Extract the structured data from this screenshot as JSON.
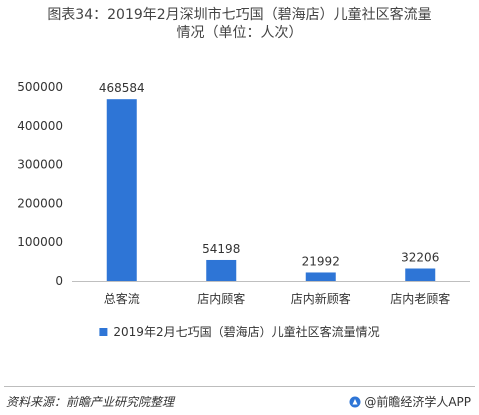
{
  "title": {
    "line1": "图表34：2019年2月深圳市七巧国（碧海店）儿童社区客流量",
    "line2": "情况（单位：人次）"
  },
  "chart_data": {
    "type": "bar",
    "categories": [
      "总客流",
      "店内顾客",
      "店内新顾客",
      "店内老顾客"
    ],
    "series": [
      {
        "name": "2019年2月七巧国（碧海店）儿童社区客流量情况",
        "values": [
          468584,
          54198,
          21992,
          32206
        ]
      }
    ],
    "value_labels": [
      "468584",
      "54198",
      "21992",
      "32206"
    ],
    "y_ticks": [
      "0",
      "100000",
      "200000",
      "300000",
      "400000",
      "500000"
    ],
    "ylim": [
      0,
      500000
    ],
    "grid": false,
    "legend_position": "bottom",
    "bar_color": "#2e75d6"
  },
  "footer": {
    "source": "资料来源：前瞻产业研究院整理",
    "brand": "@前瞻经济学人APP"
  },
  "colors": {
    "axis": "#bfbfbf",
    "text": "#333333",
    "bar": "#2e75d6"
  }
}
